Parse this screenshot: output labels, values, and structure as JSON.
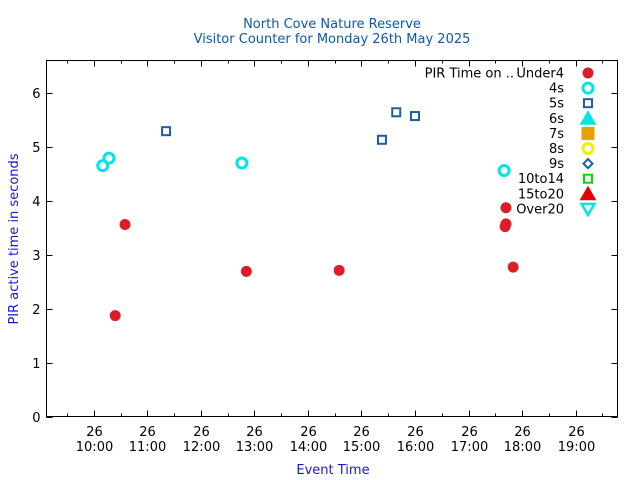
{
  "chart_data": {
    "type": "scatter",
    "title": "North Cove Nature Reserve",
    "subtitle": "Visitor Counter for Monday 26th May 2025",
    "xlabel": "Event Time",
    "ylabel": "PIR active time in seconds",
    "xlim": [
      "09:07",
      "19:47"
    ],
    "ylim": [
      0,
      6.6
    ],
    "x_ticks": [
      {
        "day": "26",
        "time": "10:00"
      },
      {
        "day": "26",
        "time": "11:00"
      },
      {
        "day": "26",
        "time": "12:00"
      },
      {
        "day": "26",
        "time": "13:00"
      },
      {
        "day": "26",
        "time": "14:00"
      },
      {
        "day": "26",
        "time": "15:00"
      },
      {
        "day": "26",
        "time": "16:00"
      },
      {
        "day": "26",
        "time": "17:00"
      },
      {
        "day": "26",
        "time": "18:00"
      },
      {
        "day": "26",
        "time": "19:00"
      }
    ],
    "y_ticks": [
      "0",
      "1",
      "2",
      "3",
      "4",
      "5",
      "6"
    ],
    "grid": false,
    "legend_position": "top-right",
    "legend_title": "PIR Time on ..",
    "series": [
      {
        "name": "Under4",
        "marker": "circle-filled",
        "color": "#dc1e28",
        "points": [
          {
            "x": "10:24",
            "y": 1.87
          },
          {
            "x": "10:35",
            "y": 3.56
          },
          {
            "x": "12:51",
            "y": 2.69
          },
          {
            "x": "14:35",
            "y": 2.71
          },
          {
            "x": "17:41",
            "y": 3.52
          },
          {
            "x": "17:42",
            "y": 3.57
          },
          {
            "x": "17:42",
            "y": 3.87
          },
          {
            "x": "17:50",
            "y": 2.77
          }
        ]
      },
      {
        "name": "4s",
        "marker": "circle-open",
        "color": "#00e6e6",
        "points": [
          {
            "x": "10:10",
            "y": 4.65
          },
          {
            "x": "10:17",
            "y": 4.79
          },
          {
            "x": "12:46",
            "y": 4.7
          },
          {
            "x": "17:40",
            "y": 4.56
          }
        ]
      },
      {
        "name": "5s",
        "marker": "square-open",
        "color": "#1a5ea8",
        "points": [
          {
            "x": "11:21",
            "y": 5.29
          },
          {
            "x": "15:23",
            "y": 5.13
          },
          {
            "x": "15:39",
            "y": 5.64
          },
          {
            "x": "16:00",
            "y": 5.57
          }
        ]
      },
      {
        "name": "6s",
        "marker": "triangle-up-filled",
        "color": "#00e6e6",
        "points": []
      },
      {
        "name": "7s",
        "marker": "square-filled",
        "color": "#e6a000",
        "points": []
      },
      {
        "name": "8s",
        "marker": "circle-open",
        "color": "#f0f000",
        "points": []
      },
      {
        "name": "9s",
        "marker": "diamond-open",
        "color": "#1a5ea8",
        "points": []
      },
      {
        "name": "10to14",
        "marker": "square-open",
        "color": "#00e000",
        "points": []
      },
      {
        "name": "15to20",
        "marker": "triangle-up-filled",
        "color": "#e60000",
        "points": []
      },
      {
        "name": "Over20",
        "marker": "triangle-down-open",
        "color": "#00e6e6",
        "points": []
      }
    ]
  }
}
